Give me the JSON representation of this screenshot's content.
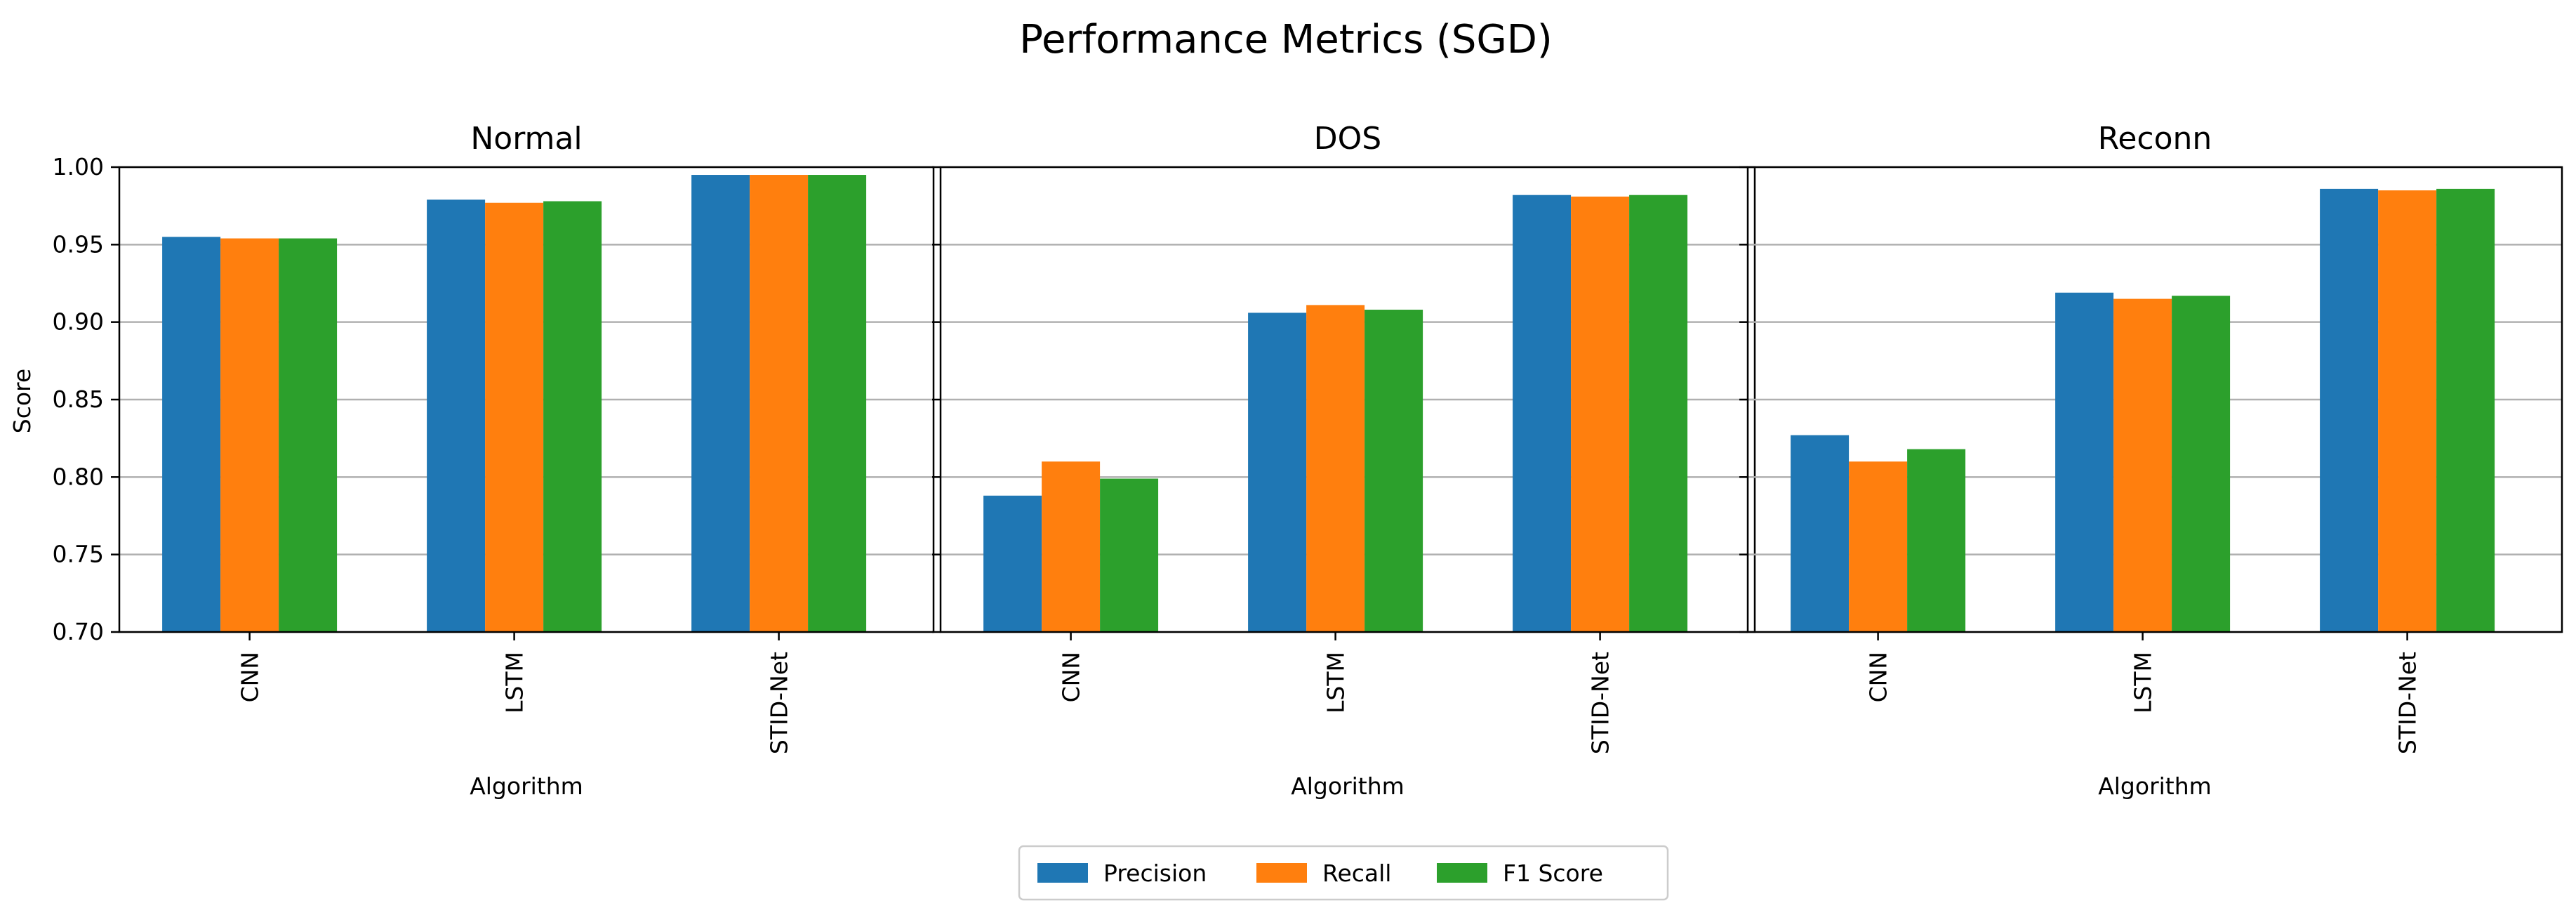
{
  "chart_data": {
    "type": "bar",
    "title": "Performance Metrics (SGD)",
    "ylabel": "Score",
    "xlabel": "Algorithm",
    "ylim": [
      0.7,
      1.0
    ],
    "yticks": [
      0.7,
      0.75,
      0.8,
      0.85,
      0.9,
      0.95,
      1.0
    ],
    "ytick_labels": [
      "0.70",
      "0.75",
      "0.80",
      "0.85",
      "0.90",
      "0.95",
      "1.00"
    ],
    "grid": "horizontal",
    "legend_position": "bottom-center",
    "colors": {
      "Precision": "#1f77b4",
      "Recall": "#ff7f0e",
      "F1 Score": "#2ca02c"
    },
    "series_names": [
      "Precision",
      "Recall",
      "F1 Score"
    ],
    "categories": [
      "CNN",
      "LSTM",
      "STID-Net"
    ],
    "panels": [
      {
        "title": "Normal",
        "xlabel": "Algorithm",
        "series": [
          {
            "name": "Precision",
            "values": [
              0.955,
              0.979,
              0.995
            ]
          },
          {
            "name": "Recall",
            "values": [
              0.954,
              0.977,
              0.995
            ]
          },
          {
            "name": "F1 Score",
            "values": [
              0.954,
              0.978,
              0.995
            ]
          }
        ]
      },
      {
        "title": "DOS",
        "xlabel": "Algorithm",
        "series": [
          {
            "name": "Precision",
            "values": [
              0.788,
              0.906,
              0.982
            ]
          },
          {
            "name": "Recall",
            "values": [
              0.81,
              0.911,
              0.981
            ]
          },
          {
            "name": "F1 Score",
            "values": [
              0.799,
              0.908,
              0.982
            ]
          }
        ]
      },
      {
        "title": "Reconn",
        "xlabel": "Algorithm",
        "series": [
          {
            "name": "Precision",
            "values": [
              0.827,
              0.919,
              0.986
            ]
          },
          {
            "name": "Recall",
            "values": [
              0.81,
              0.915,
              0.985
            ]
          },
          {
            "name": "F1 Score",
            "values": [
              0.818,
              0.917,
              0.986
            ]
          }
        ]
      }
    ]
  }
}
